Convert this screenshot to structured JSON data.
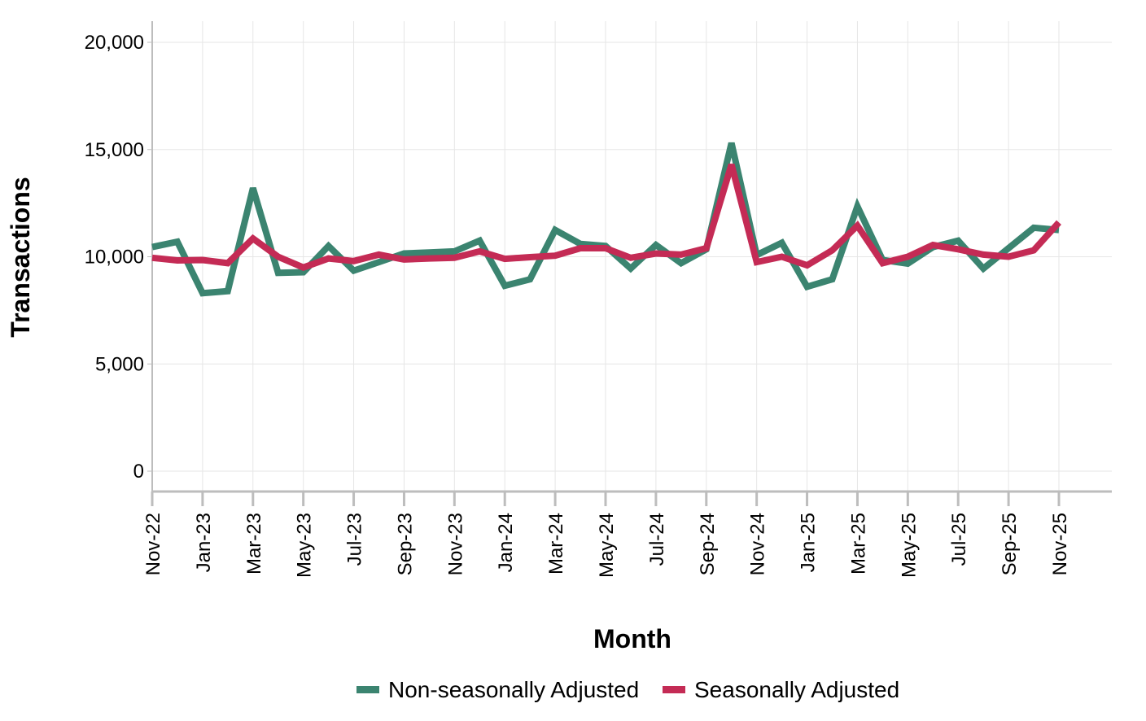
{
  "chart_data": {
    "type": "line",
    "title": "",
    "xlabel": "Month",
    "ylabel": "Transactions",
    "ylim": [
      -900,
      21000
    ],
    "yticks": [
      0,
      5000,
      10000,
      15000,
      20000
    ],
    "ytick_labels": [
      "0",
      "5,000",
      "10,000",
      "15,000",
      "20,000"
    ],
    "grid": true,
    "legend_position": "bottom",
    "x": [
      "Nov-22",
      "Dec-22",
      "Jan-23",
      "Feb-23",
      "Mar-23",
      "Apr-23",
      "May-23",
      "Jun-23",
      "Jul-23",
      "Aug-23",
      "Sep-23",
      "Oct-23",
      "Nov-23",
      "Dec-23",
      "Jan-24",
      "Feb-24",
      "Mar-24",
      "Apr-24",
      "May-24",
      "Jun-24",
      "Jul-24",
      "Aug-24",
      "Sep-24",
      "Oct-24",
      "Nov-24",
      "Dec-24",
      "Jan-25",
      "Feb-25",
      "Mar-25",
      "Apr-25",
      "May-25",
      "Jun-25",
      "Jul-25",
      "Aug-25",
      "Sep-25",
      "Oct-25",
      "Nov-25"
    ],
    "xtick_labels": [
      "Nov-22",
      "Jan-23",
      "Mar-23",
      "May-23",
      "Jul-23",
      "Sep-23",
      "Nov-23",
      "Jan-24",
      "Mar-24",
      "May-24",
      "Jul-24",
      "Sep-24",
      "Nov-24",
      "Jan-25",
      "Mar-25",
      "May-25",
      "Jul-25",
      "Sep-25",
      "Nov-25"
    ],
    "series": [
      {
        "name": "Non-seasonally Adjusted",
        "color": "#3b8470",
        "values": [
          10450,
          10700,
          8300,
          8400,
          13200,
          9250,
          9280,
          10500,
          9350,
          9750,
          10150,
          10200,
          10250,
          10750,
          8650,
          8950,
          11250,
          10600,
          10500,
          9450,
          10550,
          9700,
          10350,
          15300,
          10080,
          10650,
          8600,
          8950,
          12350,
          9850,
          9680,
          10450,
          10750,
          9450,
          10400,
          11350,
          11250
        ]
      },
      {
        "name": "Seasonally Adjusted",
        "color": "#c42b55",
        "values": [
          9950,
          9830,
          9850,
          9700,
          10850,
          10000,
          9500,
          9920,
          9800,
          10100,
          9870,
          9920,
          9950,
          10250,
          9900,
          9980,
          10050,
          10400,
          10400,
          9950,
          10150,
          10100,
          10400,
          14300,
          9750,
          10000,
          9600,
          10300,
          11450,
          9700,
          10000,
          10550,
          10350,
          10100,
          10000,
          10300,
          11600
        ]
      }
    ]
  }
}
